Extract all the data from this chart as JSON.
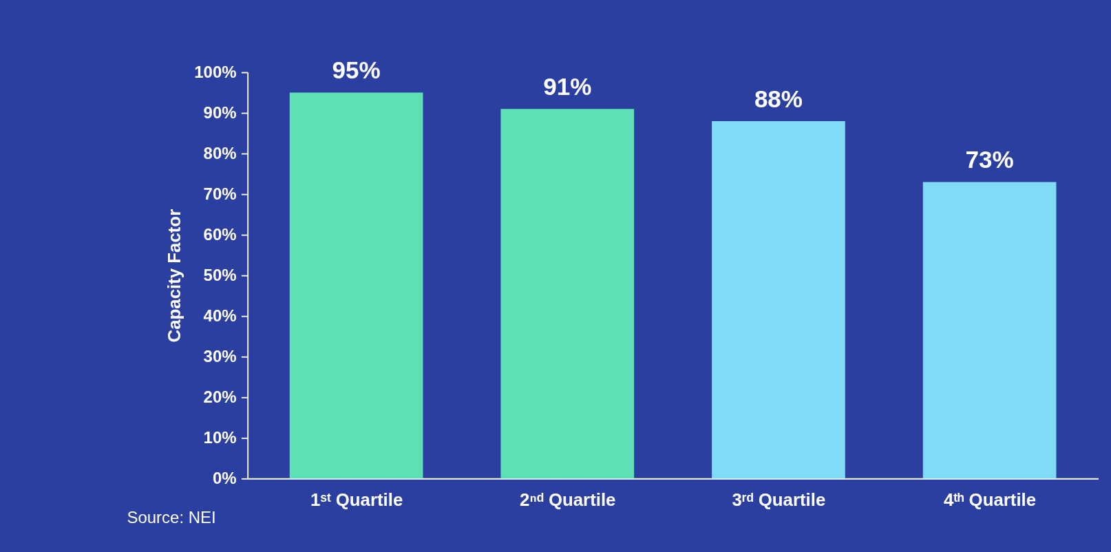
{
  "chart_data": {
    "type": "bar",
    "ylabel": "Capacity Factor",
    "categories": [
      "1ˢᵗ Quartile",
      "2ⁿᵈ Quartile",
      "3ʳᵈ Quartile",
      "4ᵗʰ Quartile"
    ],
    "values": [
      95,
      91,
      88,
      73
    ],
    "colors": [
      "#5fe0b4",
      "#5fe0b4",
      "#80dcf6",
      "#80dcf6"
    ],
    "value_labels": [
      "95%",
      "91%",
      "88%",
      "73%"
    ],
    "ylim": [
      0,
      100
    ],
    "yticks": [
      {
        "value": 0,
        "label": "0%"
      },
      {
        "value": 10,
        "label": "10%"
      },
      {
        "value": 20,
        "label": "20%"
      },
      {
        "value": 30,
        "label": "30%"
      },
      {
        "value": 40,
        "label": "40%"
      },
      {
        "value": 50,
        "label": "50%"
      },
      {
        "value": 60,
        "label": "60%"
      },
      {
        "value": 70,
        "label": "70%"
      },
      {
        "value": 80,
        "label": "80%"
      },
      {
        "value": 90,
        "label": "90%"
      },
      {
        "value": 100,
        "label": "100%"
      }
    ],
    "grid": false,
    "legend": false,
    "annotations": [
      "Source:  NEI"
    ]
  }
}
